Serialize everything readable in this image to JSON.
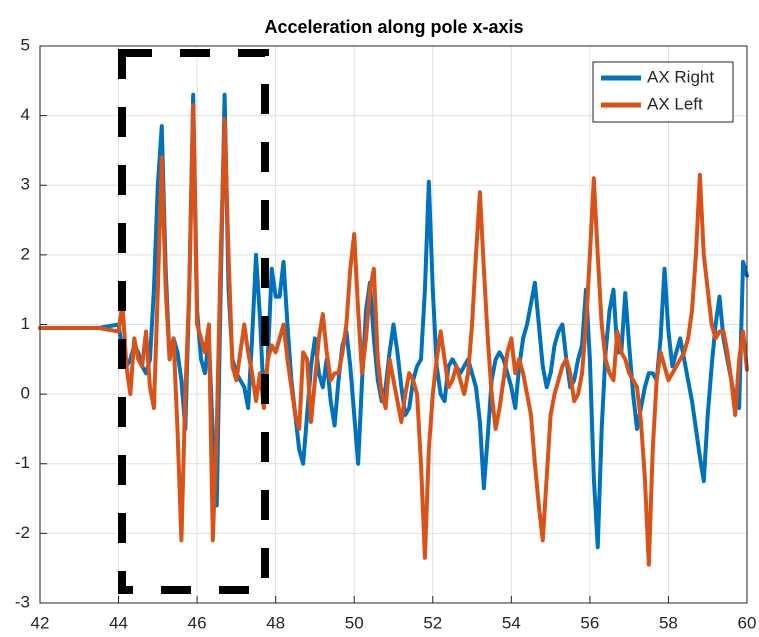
{
  "chart_data": {
    "type": "line",
    "title": "Acceleration along pole x-axis",
    "x": [
      42,
      42.5,
      43,
      43.5,
      44,
      44.1,
      44.2,
      44.3,
      44.4,
      44.5,
      44.6,
      44.7,
      44.8,
      44.9,
      45,
      45.1,
      45.2,
      45.3,
      45.4,
      45.5,
      45.6,
      45.7,
      45.8,
      45.9,
      46,
      46.1,
      46.2,
      46.3,
      46.4,
      46.5,
      46.6,
      46.7,
      46.8,
      46.9,
      47,
      47.1,
      47.2,
      47.3,
      47.4,
      47.5,
      47.6,
      47.7,
      47.8,
      47.9,
      48,
      48.1,
      48.2,
      48.3,
      48.4,
      48.5,
      48.6,
      48.7,
      48.8,
      48.9,
      49,
      49.1,
      49.2,
      49.3,
      49.4,
      49.5,
      49.6,
      49.7,
      49.8,
      49.9,
      50,
      50.1,
      50.2,
      50.3,
      50.4,
      50.5,
      50.6,
      50.7,
      50.8,
      50.9,
      51,
      51.1,
      51.2,
      51.3,
      51.4,
      51.5,
      51.6,
      51.7,
      51.8,
      51.9,
      52,
      52.1,
      52.2,
      52.3,
      52.4,
      52.5,
      52.6,
      52.7,
      52.8,
      52.9,
      53,
      53.1,
      53.2,
      53.3,
      53.4,
      53.5,
      53.6,
      53.7,
      53.8,
      53.9,
      54,
      54.1,
      54.2,
      54.3,
      54.4,
      54.5,
      54.6,
      54.7,
      54.8,
      54.9,
      55,
      55.1,
      55.2,
      55.3,
      55.4,
      55.5,
      55.6,
      55.7,
      55.8,
      55.9,
      56,
      56.1,
      56.2,
      56.3,
      56.4,
      56.5,
      56.6,
      56.7,
      56.8,
      56.9,
      57,
      57.1,
      57.2,
      57.3,
      57.4,
      57.5,
      57.6,
      57.7,
      57.8,
      57.9,
      58,
      58.1,
      58.2,
      58.3,
      58.4,
      58.5,
      58.6,
      58.7,
      58.8,
      58.9,
      59,
      59.1,
      59.2,
      59.3,
      59.4,
      59.5,
      59.6,
      59.7,
      59.8,
      59.9,
      60
    ],
    "series": [
      {
        "name": "AX Right",
        "color": "#0072BD",
        "values": [
          0.95,
          0.95,
          0.95,
          0.95,
          1.0,
          0.6,
          0.4,
          0.5,
          0.7,
          0.6,
          0.4,
          0.3,
          0.5,
          1.5,
          3.0,
          3.85,
          1.8,
          0.5,
          0.8,
          0.6,
          0.2,
          -0.5,
          1.5,
          4.3,
          1.2,
          0.5,
          0.3,
          0.8,
          -0.6,
          -1.6,
          1.5,
          4.3,
          1.5,
          0.5,
          0.3,
          0.2,
          0.1,
          -0.2,
          0.8,
          2.0,
          1.1,
          -0.1,
          0.5,
          1.8,
          1.4,
          1.4,
          1.9,
          1.0,
          0.2,
          -0.3,
          -0.8,
          -1.0,
          -0.3,
          0.4,
          0.8,
          0.3,
          0.1,
          0.5,
          -0.1,
          -0.45,
          0.2,
          0.7,
          0.9,
          0.4,
          -0.3,
          -1.0,
          0.2,
          1.2,
          1.6,
          0.8,
          0.2,
          -0.1,
          0.1,
          0.6,
          1.0,
          0.6,
          0.1,
          -0.3,
          -0.2,
          0.2,
          0.4,
          0.5,
          1.5,
          3.05,
          1.5,
          0.4,
          0.0,
          -0.1,
          0.4,
          0.5,
          0.4,
          0.3,
          0.4,
          0.5,
          0.3,
          0.1,
          -0.4,
          -1.35,
          -0.6,
          0.2,
          0.5,
          0.6,
          0.5,
          0.3,
          0.1,
          -0.2,
          0.4,
          0.8,
          1.0,
          1.3,
          1.6,
          1.0,
          0.4,
          0.1,
          0.3,
          0.7,
          0.9,
          1.0,
          0.5,
          0.1,
          0.2,
          0.5,
          0.7,
          1.5,
          0.5,
          -1.2,
          -2.2,
          -0.5,
          0.6,
          1.2,
          1.5,
          0.6,
          0.6,
          1.45,
          0.7,
          0.0,
          -0.5,
          -0.2,
          0.1,
          0.3,
          0.3,
          0.2,
          0.8,
          1.8,
          0.9,
          0.4,
          0.6,
          0.8,
          0.5,
          0.2,
          -0.1,
          -0.5,
          -0.9,
          -1.25,
          -0.3,
          0.4,
          1.0,
          1.4,
          0.8,
          0.5,
          0.2,
          -0.1,
          -0.2,
          1.9,
          1.7
        ]
      },
      {
        "name": "AX Left",
        "color": "#D95319",
        "values": [
          0.95,
          0.95,
          0.95,
          0.95,
          0.9,
          1.3,
          0.4,
          0.0,
          0.8,
          0.5,
          0.4,
          0.9,
          0.1,
          -0.2,
          1.5,
          3.4,
          1.5,
          0.5,
          0.8,
          -0.5,
          -2.1,
          0.0,
          1.5,
          4.15,
          1.0,
          0.8,
          0.6,
          1.0,
          -2.1,
          -0.5,
          2.0,
          3.95,
          2.0,
          0.4,
          0.2,
          0.6,
          1.0,
          0.6,
          0.3,
          -0.1,
          0.3,
          -0.2,
          0.5,
          0.7,
          0.6,
          0.8,
          1.0,
          0.5,
          0.1,
          -0.3,
          -0.5,
          0.6,
          0.5,
          -0.4,
          0.2,
          0.8,
          1.15,
          0.6,
          0.2,
          0.3,
          0.3,
          0.6,
          1.0,
          1.8,
          2.3,
          1.2,
          0.3,
          0.8,
          1.5,
          1.8,
          0.5,
          0.0,
          -0.2,
          0.5,
          0.2,
          -0.1,
          -0.4,
          0.0,
          0.3,
          0.2,
          0.0,
          -1.0,
          -2.35,
          -0.8,
          0.0,
          0.5,
          0.9,
          0.5,
          0.1,
          0.2,
          0.4,
          0.2,
          0.0,
          0.3,
          1.0,
          2.0,
          2.9,
          1.8,
          0.8,
          0.0,
          -0.5,
          -0.2,
          0.2,
          0.6,
          0.8,
          0.3,
          0.5,
          0.3,
          0.0,
          -0.3,
          -1.0,
          -1.6,
          -2.1,
          -1.2,
          -0.3,
          0.0,
          0.2,
          0.4,
          0.5,
          0.3,
          -0.1,
          0.0,
          0.3,
          1.0,
          2.0,
          3.1,
          2.0,
          1.0,
          0.5,
          0.3,
          0.2,
          0.9,
          0.6,
          0.5,
          0.3,
          0.2,
          0.1,
          -0.4,
          -1.2,
          -2.45,
          -0.8,
          0.2,
          0.6,
          0.4,
          0.2,
          0.3,
          0.4,
          0.5,
          0.6,
          0.8,
          1.2,
          2.0,
          3.15,
          2.0,
          1.5,
          1.0,
          0.8,
          0.9,
          0.9,
          0.6,
          0.2,
          -0.3,
          0.5,
          0.9,
          0.35
        ]
      }
    ],
    "xlim": [
      42,
      60
    ],
    "xticks": [
      42,
      44,
      46,
      48,
      50,
      52,
      54,
      56,
      58,
      60
    ],
    "ylim": [
      -3,
      5
    ],
    "yticks": [
      -3,
      -2,
      -1,
      0,
      1,
      2,
      3,
      4,
      5
    ],
    "grid": true,
    "legend": "northeast"
  }
}
